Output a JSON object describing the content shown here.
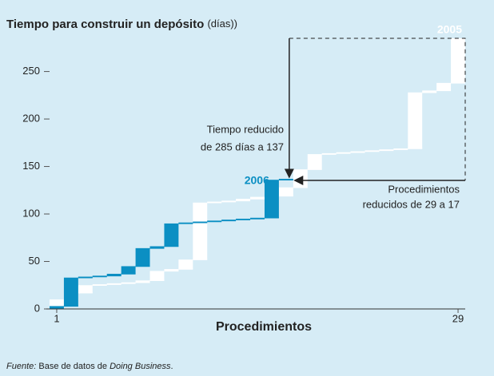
{
  "chart_data": {
    "type": "waterfall",
    "title": "Tiempo para construir un depósito",
    "title_unit": "(días))",
    "x_label": "Procedimientos",
    "xlim": [
      1,
      29
    ],
    "xticks": [
      1,
      29
    ],
    "ylim": [
      0,
      290
    ],
    "yticks": [
      0,
      50,
      100,
      150,
      200,
      250
    ],
    "series": [
      {
        "name": "2005",
        "color": "#ffffff",
        "values": [
          10,
          7,
          8,
          1,
          1,
          1,
          2,
          10,
          2,
          10,
          60,
          1,
          1,
          2,
          2,
          1,
          9,
          19,
          16,
          1,
          1,
          1,
          1,
          1,
          1,
          59,
          2,
          8,
          47
        ]
      },
      {
        "name": "2006",
        "color": "#0b8fc3",
        "values": [
          3,
          30,
          1,
          1,
          2,
          8,
          19,
          2,
          24,
          1,
          1,
          1,
          1,
          1,
          1,
          40,
          1
        ]
      }
    ],
    "annotations": [
      "Tiempo reducido",
      "de 285 días a 137",
      "Procedimientos",
      "reducidos de 29 a 17"
    ],
    "source": {
      "label": "Fuente:",
      "text": "Base de datos de",
      "name": "Doing Business",
      "end": "."
    }
  }
}
